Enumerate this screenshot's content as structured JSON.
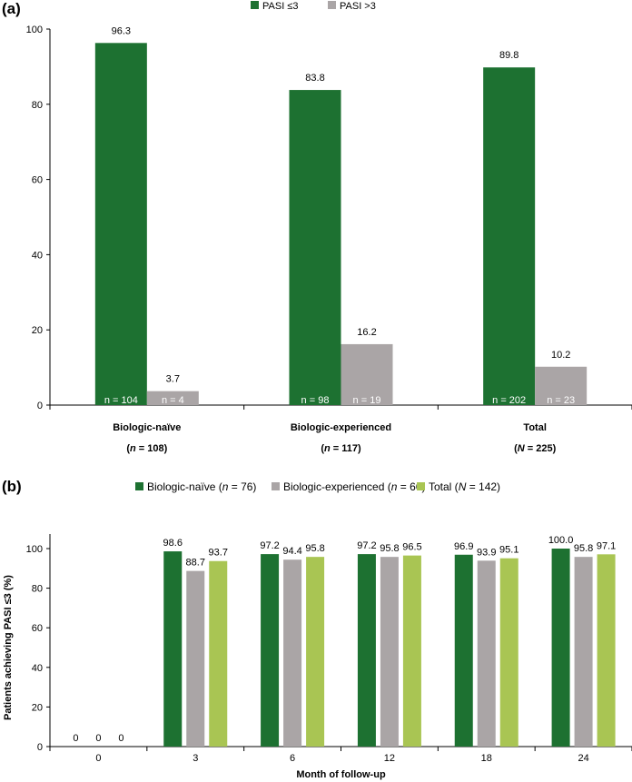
{
  "colors": {
    "dark_green": "#1d7131",
    "gray": "#aaa5a6",
    "light_green": "#a9c553"
  },
  "chart_data": [
    {
      "panel": "(a)",
      "type": "bar",
      "legend": [
        "PASI ≤3",
        "PASI >3"
      ],
      "legend_placement": "top-center",
      "categories": [
        "Biologic-naïve",
        "Biologic-experienced",
        "Total"
      ],
      "category_sublabels": [
        {
          "pre": "(",
          "italic": "n",
          "post": " = 108)"
        },
        {
          "pre": "(",
          "italic": "n",
          "post": " = 117)"
        },
        {
          "pre": "(",
          "italic": "N",
          "post": " = 225)"
        }
      ],
      "series": [
        {
          "name": "PASI ≤3",
          "values": [
            96.3,
            83.8,
            89.8
          ],
          "value_labels": [
            "96.3",
            "83.8",
            "89.8"
          ],
          "n_labels": [
            "n = 104",
            "n = 98",
            "n = 202"
          ]
        },
        {
          "name": "PASI >3",
          "values": [
            3.7,
            16.2,
            10.2
          ],
          "value_labels": [
            "3.7",
            "16.2",
            "10.2"
          ],
          "n_labels": [
            "n = 4",
            "n = 19",
            "n = 23"
          ]
        }
      ],
      "ylim": [
        0,
        100
      ],
      "yticks": [
        "0",
        "20",
        "40",
        "60",
        "80",
        "100"
      ],
      "grid": false
    },
    {
      "panel": "(b)",
      "type": "bar",
      "legend": [
        {
          "pre": "Biologic-naïve (",
          "italic": "n",
          "post": " = 76)"
        },
        {
          "pre": "Biologic-experienced (",
          "italic": "n",
          "post": " = 66)"
        },
        {
          "pre": "Total (",
          "italic": "N",
          "post": " = 142)"
        }
      ],
      "legend_placement": "top",
      "categories": [
        "0",
        "3",
        "6",
        "12",
        "18",
        "24"
      ],
      "series": [
        {
          "name": "Biologic-naïve",
          "values": [
            0,
            98.6,
            97.2,
            97.2,
            96.9,
            100.0
          ],
          "value_labels": [
            "0",
            "98.6",
            "97.2",
            "97.2",
            "96.9",
            "100.0"
          ]
        },
        {
          "name": "Biologic-experienced",
          "values": [
            0,
            88.7,
            94.4,
            95.8,
            93.9,
            95.8
          ],
          "value_labels": [
            "0",
            "88.7",
            "94.4",
            "95.8",
            "93.9",
            "95.8"
          ]
        },
        {
          "name": "Total",
          "values": [
            0,
            93.7,
            95.8,
            96.5,
            95.1,
            97.1
          ],
          "value_labels": [
            "0",
            "93.7",
            "95.8",
            "96.5",
            "95.1",
            "97.1"
          ]
        }
      ],
      "xlabel": "Month of follow-up",
      "ylabel": "Patients achieving PASI ≤3 (%)",
      "ylim": [
        0,
        100
      ],
      "yticks": [
        "0",
        "20",
        "40",
        "60",
        "80",
        "100"
      ],
      "grid": false
    }
  ]
}
